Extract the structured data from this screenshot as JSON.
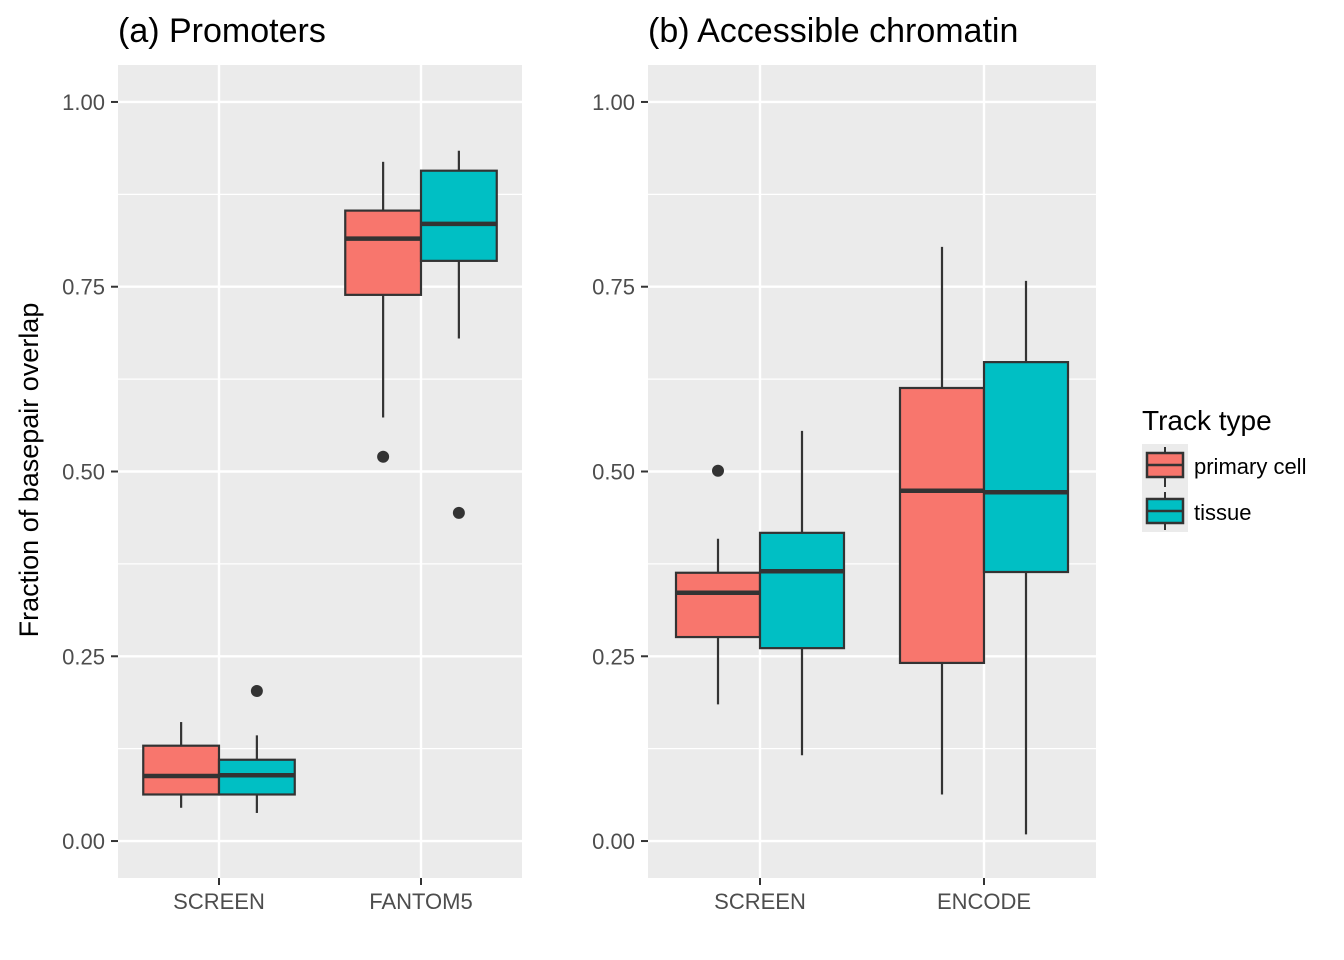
{
  "ylabel": "Fraction of basepair overlap",
  "legend": {
    "title": "Track type",
    "items": [
      {
        "label": "primary cell",
        "color": "#F8766D"
      },
      {
        "label": "tissue",
        "color": "#00BFC4"
      }
    ]
  },
  "chart_data": [
    {
      "type": "boxplot",
      "title": "(a) Promoters",
      "ylim": [
        -0.05,
        1.05
      ],
      "yticks": [
        0.0,
        0.25,
        0.5,
        0.75,
        1.0
      ],
      "ytick_labels": [
        "0.00",
        "0.25",
        "0.50",
        "0.75",
        "1.00"
      ],
      "categories": [
        "SCREEN",
        "FANTOM5"
      ],
      "series": [
        {
          "name": "primary cell",
          "color": "#F8766D",
          "boxes": [
            {
              "whisker_low": 0.045,
              "q1": 0.063,
              "median": 0.088,
              "q3": 0.129,
              "whisker_high": 0.161,
              "outliers": []
            },
            {
              "whisker_low": 0.573,
              "q1": 0.739,
              "median": 0.815,
              "q3": 0.853,
              "whisker_high": 0.919,
              "outliers": [
                0.52
              ]
            }
          ]
        },
        {
          "name": "tissue",
          "color": "#00BFC4",
          "boxes": [
            {
              "whisker_low": 0.038,
              "q1": 0.063,
              "median": 0.089,
              "q3": 0.11,
              "whisker_high": 0.143,
              "outliers": [
                0.203
              ]
            },
            {
              "whisker_low": 0.68,
              "q1": 0.785,
              "median": 0.835,
              "q3": 0.907,
              "whisker_high": 0.934,
              "outliers": [
                0.444
              ]
            }
          ]
        }
      ]
    },
    {
      "type": "boxplot",
      "title": "(b) Accessible chromatin",
      "ylim": [
        -0.05,
        1.05
      ],
      "yticks": [
        0.0,
        0.25,
        0.5,
        0.75,
        1.0
      ],
      "ytick_labels": [
        "0.00",
        "0.25",
        "0.50",
        "0.75",
        "1.00"
      ],
      "categories": [
        "SCREEN",
        "ENCODE"
      ],
      "series": [
        {
          "name": "primary cell",
          "color": "#F8766D",
          "boxes": [
            {
              "whisker_low": 0.185,
              "q1": 0.276,
              "median": 0.336,
              "q3": 0.363,
              "whisker_high": 0.409,
              "outliers": [
                0.501
              ]
            },
            {
              "whisker_low": 0.063,
              "q1": 0.241,
              "median": 0.474,
              "q3": 0.613,
              "whisker_high": 0.804,
              "outliers": []
            }
          ]
        },
        {
          "name": "tissue",
          "color": "#00BFC4",
          "boxes": [
            {
              "whisker_low": 0.116,
              "q1": 0.261,
              "median": 0.365,
              "q3": 0.417,
              "whisker_high": 0.555,
              "outliers": []
            },
            {
              "whisker_low": 0.009,
              "q1": 0.364,
              "median": 0.472,
              "q3": 0.648,
              "whisker_high": 0.758,
              "outliers": []
            }
          ]
        }
      ]
    }
  ]
}
